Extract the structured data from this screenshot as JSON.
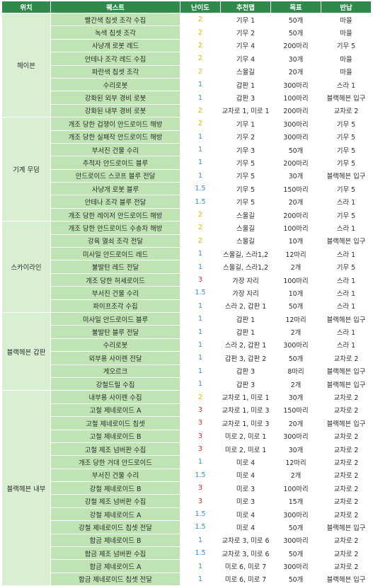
{
  "headers": [
    "위치",
    "퀘스트",
    "난이도",
    "추천맵",
    "목표",
    "반납"
  ],
  "colors": {
    "header_bg": "#2e8a4a",
    "location_bg": "#d9efd2",
    "quest_bg": "#bfe3b3",
    "difficulty_1": "#2f8bd1",
    "difficulty_1_5": "#2f8bd1",
    "difficulty_2": "#e8b400",
    "difficulty_3": "#e02a1f"
  },
  "groups": [
    {
      "location": "헤이븐",
      "rows": [
        [
          "빨간색 칩셋 조각 수집",
          "2",
          "기무 1",
          "50개",
          "마을"
        ],
        [
          "녹색 칩셋 조각",
          "2",
          "기무 2",
          "50개",
          "마을"
        ],
        [
          "사냥개 로봇 레드",
          "2",
          "기무 4",
          "200마리",
          "기무 5"
        ],
        [
          "안테나 조각 레드 수집",
          "2",
          "기무 4",
          "30개",
          "마을"
        ],
        [
          "파란색 칩셋 조각",
          "2",
          "스울길",
          "20개",
          "마을"
        ],
        [
          "수리로봇",
          "1",
          "갑판 1",
          "300마리",
          "스라 1"
        ],
        [
          "강화된 외부 경비 로봇",
          "1",
          "갑판 3",
          "100마리",
          "블랙헤븐 입구"
        ],
        [
          "강화된 내부 경비 로봇",
          "2",
          "교차로 1, 미로 1",
          "200마리",
          "교차로 2"
        ]
      ]
    },
    {
      "location": "기계 무덤",
      "rows": [
        [
          "개조 당한 겁쟁이 안드로이드 해방",
          "2",
          "기무 1",
          "300마리",
          "기무 5"
        ],
        [
          "개조 당한 실패작 안드로이드 해방",
          "1",
          "기무 2",
          "300마리",
          "기무 5"
        ],
        [
          "부서진 건물 수리",
          "1",
          "기무 3",
          "50개",
          "기무 5"
        ],
        [
          "추적자 안드로이드 블루",
          "1",
          "기무 5",
          "200마리",
          "기무 5"
        ],
        [
          "안드로이드 스코프 블루 전달",
          "1",
          "기무 5",
          "30개",
          "블랙헤븐 입구"
        ],
        [
          "사냥개 로봇 블루",
          "1.5",
          "기무 5",
          "150마리",
          "기무 5"
        ],
        [
          "안테나 조각 블루 전달",
          "1.5",
          "기무 5",
          "20개",
          "스라 1"
        ],
        [
          "개조 당한 레이저 안드로이드 해방",
          "2",
          "스울길",
          "200마리",
          "기무 5"
        ]
      ]
    },
    {
      "location": "스카이라인",
      "rows": [
        [
          "개조 당한 안드로이드 수송차 해방",
          "2",
          "스울길",
          "100마리",
          "스라 1"
        ],
        [
          "강육 열쇠 조각 전달",
          "2",
          "스울길",
          "10개",
          "블랙헤븐 입구"
        ],
        [
          "미사일 안드로이드 레드",
          "1",
          "스울길, 스라1,2",
          "12마리",
          "스라 1"
        ],
        [
          "불발탄 레드 전달",
          "1",
          "스울길, 스라1,2",
          "2개",
          "기무 5"
        ],
        [
          "개조 당한 허세로이드",
          "3",
          "가장 자리",
          "100마리",
          "스라 1"
        ],
        [
          "부서진 건물 수리",
          "1.5",
          "가장 자리",
          "10개",
          "스라 1"
        ],
        [
          "파이프조각 수집",
          "1",
          "스라 2, 갑판 1",
          "50개",
          "스라 1"
        ]
      ]
    },
    {
      "location": "블랙헤븐 갑판",
      "rows": [
        [
          "미사일 안드로이드 블루",
          "1",
          "갑판 1",
          "12마리",
          "블랙헤븐 입구"
        ],
        [
          "불발탄 블루 전달",
          "1",
          "갑판 1",
          "2개",
          "스라 1"
        ],
        [
          "수리로봇",
          "1",
          "스라 2, 갑판 1",
          "300마리",
          "스라 1"
        ],
        [
          "외부용 사이렌 전달",
          "1",
          "갑판 3, 갑판 2",
          "50개",
          "교차로 2"
        ],
        [
          "게오르크",
          "1",
          "갑판 3",
          "8마리",
          "블랙헤븐 입구"
        ],
        [
          "강철드릴 수집",
          "1",
          "갑판 3",
          "2개",
          "블랙헤븐 입구"
        ]
      ]
    },
    {
      "location": "블랙헤븐 내부",
      "rows": [
        [
          "내부용 사이렌 수집",
          "2",
          "교차로 1, 미로 1",
          "30개",
          "교차로 2"
        ],
        [
          "고철 제네로이드 A",
          "3",
          "교차로 1, 미로 3",
          "150마리",
          "교차로 2"
        ],
        [
          "고철 제네로이드 칩셋",
          "3",
          "교차로 1, 미로 3",
          "20개",
          "블랙헤븐 입구"
        ],
        [
          "고철 제네로이드 B",
          "3",
          "미로 2, 미로 1",
          "300마리",
          "교차로 2"
        ],
        [
          "고철 제조 넘버판 수집",
          "3",
          "미로 2, 미로 1",
          "30개",
          "교차로 2"
        ],
        [
          "개조 당한 거대 안드로이드",
          "1",
          "미로 4",
          "12마리",
          "교차로 2"
        ],
        [
          "부서진 건물 수리",
          "1.5",
          "미로 4",
          "2개",
          "교차로 2"
        ],
        [
          "강철 제네로이드 B",
          "3",
          "미로 3",
          "100마리",
          "교차로 2"
        ],
        [
          "강철 제조 넘버판 수집",
          "3",
          "미로 3",
          "15개",
          "교차로 2"
        ],
        [
          "강철 제네로이드 A",
          "1.5",
          "미로 4",
          "300마리",
          "교차로 2"
        ],
        [
          "강철 제네로이드 칩셋 전달",
          "1.5",
          "미로 4",
          "50개",
          "블랙헤븐 입구"
        ],
        [
          "합금 제네로이드 B",
          "1",
          "교차로 3, 미로 6",
          "300마리",
          "교차로 2"
        ],
        [
          "합금 제조 넘버판 수집",
          "1.5",
          "교차로 3, 미로 6",
          "50개",
          "교차로 2"
        ],
        [
          "합금 제네로이드 A",
          "1",
          "미로 6, 미로 7",
          "300마리",
          "교차로 2"
        ],
        [
          "합금 제네로이드 칩셋 전달",
          "1",
          "미로 6, 미로 7",
          "50개",
          "블랙헤븐 입구"
        ]
      ]
    }
  ]
}
